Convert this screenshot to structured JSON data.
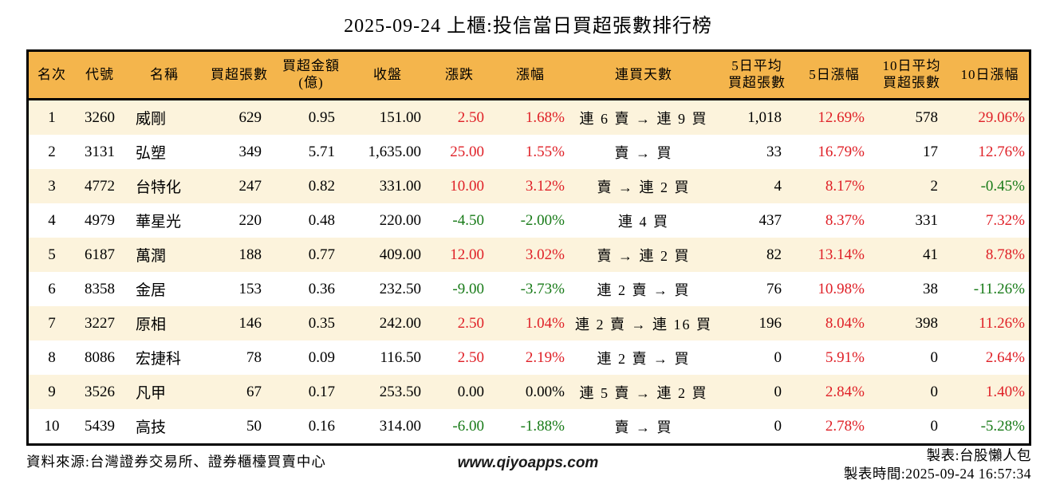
{
  "title": "2025-09-24 上櫃:投信當日買超張數排行榜",
  "colors": {
    "header_bg": "#f4b54c",
    "stripe_bg": "#fcf3dc",
    "up": "#df1f26",
    "down": "#177a17",
    "border": "#000000"
  },
  "table": {
    "columns": [
      {
        "id": "rank",
        "label": "名次",
        "label2": "",
        "align": "center",
        "signed": false
      },
      {
        "id": "code",
        "label": "代號",
        "label2": "",
        "align": "center",
        "signed": false
      },
      {
        "id": "name",
        "label": "名稱",
        "label2": "",
        "align": "left",
        "signed": false
      },
      {
        "id": "net_buy",
        "label": "買超張數",
        "label2": "",
        "align": "right",
        "signed": false
      },
      {
        "id": "net_amount",
        "label": "買超金額",
        "label2": "(億)",
        "align": "right",
        "signed": false
      },
      {
        "id": "close",
        "label": "收盤",
        "label2": "",
        "align": "right",
        "signed": false
      },
      {
        "id": "change",
        "label": "漲跌",
        "label2": "",
        "align": "right",
        "signed": true
      },
      {
        "id": "change_pct",
        "label": "漲幅",
        "label2": "",
        "align": "right",
        "signed": true
      },
      {
        "id": "streak",
        "label": "連買天數",
        "label2": "",
        "align": "center",
        "signed": false
      },
      {
        "id": "avg5",
        "label": "5日平均",
        "label2": "買超張數",
        "align": "right",
        "signed": false
      },
      {
        "id": "pct5",
        "label": "5日漲幅",
        "label2": "",
        "align": "right",
        "signed": true
      },
      {
        "id": "avg10",
        "label": "10日平均",
        "label2": "買超張數",
        "align": "right",
        "signed": false
      },
      {
        "id": "pct10",
        "label": "10日漲幅",
        "label2": "",
        "align": "right",
        "signed": true
      }
    ],
    "rows": [
      {
        "rank": "1",
        "code": "3260",
        "name": "威剛",
        "net_buy": "629",
        "net_amount": "0.95",
        "close": "151.00",
        "change": "2.50",
        "change_pct": "1.68%",
        "streak": "連 6 賣 → 連 9 買",
        "avg5": "1,018",
        "pct5": "12.69%",
        "avg10": "578",
        "pct10": "29.06%"
      },
      {
        "rank": "2",
        "code": "3131",
        "name": "弘塑",
        "net_buy": "349",
        "net_amount": "5.71",
        "close": "1,635.00",
        "change": "25.00",
        "change_pct": "1.55%",
        "streak": "賣 → 買",
        "avg5": "33",
        "pct5": "16.79%",
        "avg10": "17",
        "pct10": "12.76%"
      },
      {
        "rank": "3",
        "code": "4772",
        "name": "台特化",
        "net_buy": "247",
        "net_amount": "0.82",
        "close": "331.00",
        "change": "10.00",
        "change_pct": "3.12%",
        "streak": "賣 → 連 2 買",
        "avg5": "4",
        "pct5": "8.17%",
        "avg10": "2",
        "pct10": "-0.45%"
      },
      {
        "rank": "4",
        "code": "4979",
        "name": "華星光",
        "net_buy": "220",
        "net_amount": "0.48",
        "close": "220.00",
        "change": "-4.50",
        "change_pct": "-2.00%",
        "streak": "連 4 買",
        "avg5": "437",
        "pct5": "8.37%",
        "avg10": "331",
        "pct10": "7.32%"
      },
      {
        "rank": "5",
        "code": "6187",
        "name": "萬潤",
        "net_buy": "188",
        "net_amount": "0.77",
        "close": "409.00",
        "change": "12.00",
        "change_pct": "3.02%",
        "streak": "賣 → 連 2 買",
        "avg5": "82",
        "pct5": "13.14%",
        "avg10": "41",
        "pct10": "8.78%"
      },
      {
        "rank": "6",
        "code": "8358",
        "name": "金居",
        "net_buy": "153",
        "net_amount": "0.36",
        "close": "232.50",
        "change": "-9.00",
        "change_pct": "-3.73%",
        "streak": "連 2 賣 → 買",
        "avg5": "76",
        "pct5": "10.98%",
        "avg10": "38",
        "pct10": "-11.26%"
      },
      {
        "rank": "7",
        "code": "3227",
        "name": "原相",
        "net_buy": "146",
        "net_amount": "0.35",
        "close": "242.00",
        "change": "2.50",
        "change_pct": "1.04%",
        "streak": "連 2 賣 → 連 16 買",
        "avg5": "196",
        "pct5": "8.04%",
        "avg10": "398",
        "pct10": "11.26%"
      },
      {
        "rank": "8",
        "code": "8086",
        "name": "宏捷科",
        "net_buy": "78",
        "net_amount": "0.09",
        "close": "116.50",
        "change": "2.50",
        "change_pct": "2.19%",
        "streak": "連 2 賣 → 買",
        "avg5": "0",
        "pct5": "5.91%",
        "avg10": "0",
        "pct10": "2.64%"
      },
      {
        "rank": "9",
        "code": "3526",
        "name": "凡甲",
        "net_buy": "67",
        "net_amount": "0.17",
        "close": "253.50",
        "change": "0.00",
        "change_pct": "0.00%",
        "streak": "連 5 賣 → 連 2 買",
        "avg5": "0",
        "pct5": "2.84%",
        "avg10": "0",
        "pct10": "1.40%"
      },
      {
        "rank": "10",
        "code": "5439",
        "name": "高技",
        "net_buy": "50",
        "net_amount": "0.16",
        "close": "314.00",
        "change": "-6.00",
        "change_pct": "-1.88%",
        "streak": "賣 → 買",
        "avg5": "0",
        "pct5": "2.78%",
        "avg10": "0",
        "pct10": "-5.28%"
      }
    ]
  },
  "footer": {
    "source": "資料來源:台灣證券交易所、證券櫃檯買賣中心",
    "website": "www.qiyoapps.com",
    "maker": "製表:台股懶人包",
    "generated": "製表時間:2025-09-24 16:57:34"
  }
}
